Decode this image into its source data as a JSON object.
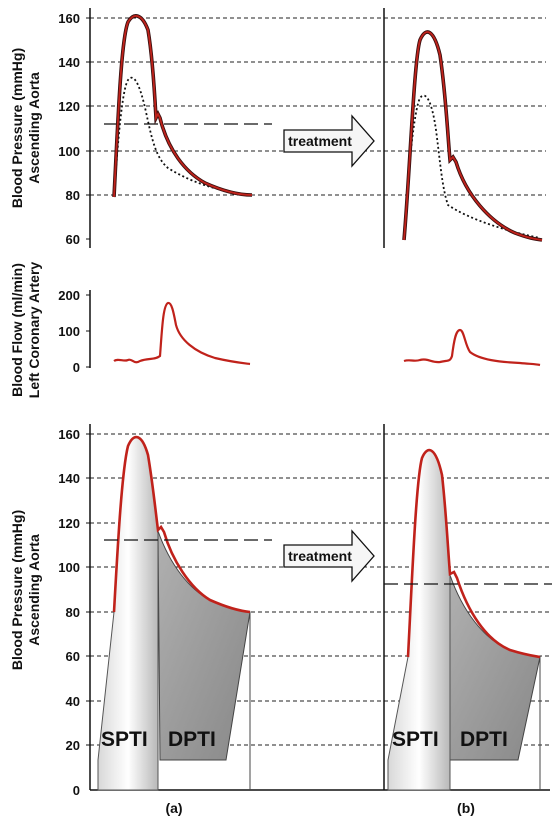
{
  "labels": {
    "top_ylabel_line1": "Blood Pressure (mmHg)",
    "top_ylabel_line2": "Ascending Aorta",
    "mid_ylabel_line1": "Blood Flow  (ml/min)",
    "mid_ylabel_line2": "Left Coronary Artery",
    "bottom_ylabel_line1": "Blood Pressure (mmHg)",
    "bottom_ylabel_line2": "Ascending Aorta",
    "treatment": "treatment",
    "spti": "SPTI",
    "dpti": "DPTI",
    "panel_a": "(a)",
    "panel_b": "(b)"
  },
  "colors": {
    "curve": "#c0221b",
    "dark": "#3a1010",
    "dpti_fill": "#9a9a9a",
    "spti_fill": "#f4f4f4"
  },
  "chart_data": [
    {
      "type": "line",
      "yticks": [
        60,
        80,
        100,
        120,
        140,
        160
      ],
      "ylim": [
        60,
        160
      ],
      "grid": true,
      "series": [
        {
          "values_a": {
            "start": 80,
            "peak": 160,
            "notch": 116,
            "end": 80
          },
          "values_b": {
            "start": 60,
            "peak": 154,
            "notch": 96,
            "end": 60
          }
        }
      ],
      "mean_line_a": 112,
      "dotted_peak_a": 132,
      "dotted_peak_b": 125
    },
    {
      "type": "line",
      "yticks": [
        0,
        100,
        200
      ],
      "ylim": [
        0,
        200
      ],
      "grid": false,
      "peak_a": 175,
      "peak_b": 100
    },
    {
      "type": "area",
      "yticks": [
        0,
        20,
        40,
        60,
        80,
        100,
        120,
        140,
        160
      ],
      "ylim": [
        0,
        160
      ],
      "grid": true,
      "a": {
        "start": 80,
        "peak": 160,
        "notch": 116,
        "end": 80,
        "mean": 112
      },
      "b": {
        "start": 60,
        "peak": 154,
        "notch": 96,
        "end": 60,
        "mean": 92
      }
    }
  ]
}
